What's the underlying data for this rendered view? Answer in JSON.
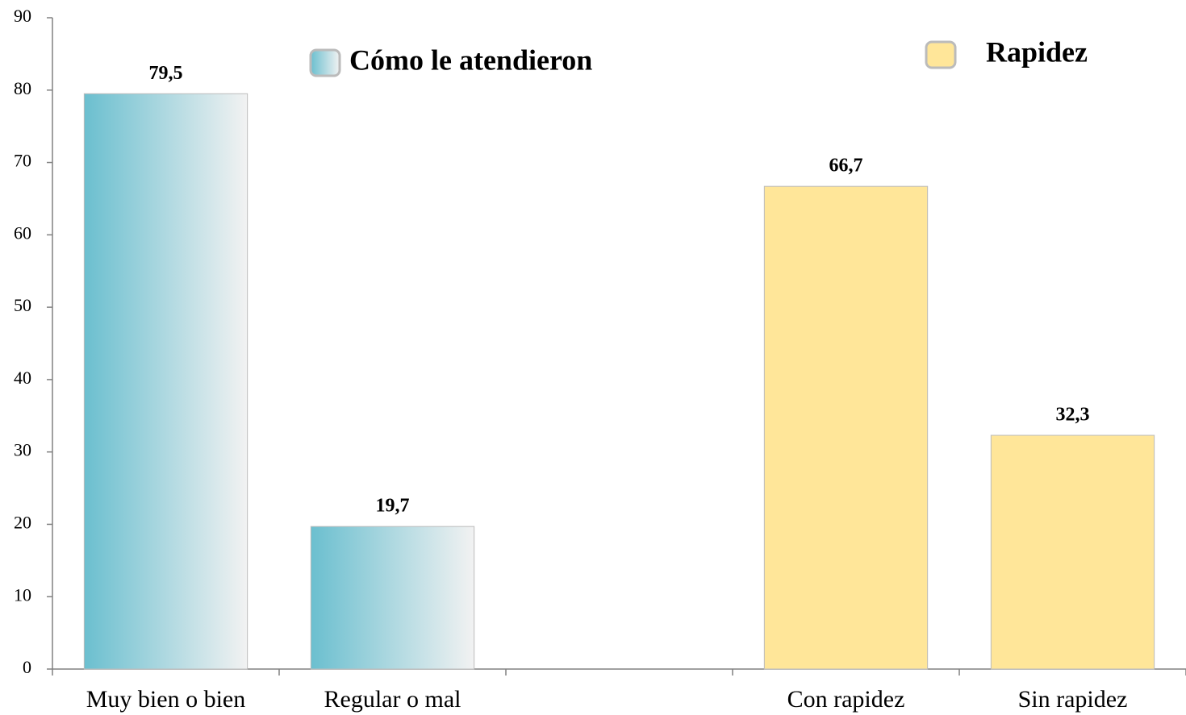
{
  "chart_data": {
    "type": "bar",
    "categories": [
      "Muy bien o bien",
      "Regular o mal",
      null,
      "Con rapidez",
      "Sin rapidez"
    ],
    "series": [
      {
        "name": "Cómo le atendieron",
        "color": "#6bbfcf",
        "values": [
          79.5,
          19.7,
          null,
          null,
          null
        ],
        "value_labels": [
          "79,5",
          "19,7",
          null,
          null,
          null
        ]
      },
      {
        "name": "Rapidez",
        "color": "#ffe699",
        "values": [
          null,
          null,
          null,
          66.7,
          32.3
        ],
        "value_labels": [
          null,
          null,
          null,
          "66,7",
          "32,3"
        ]
      }
    ],
    "ylim": [
      0,
      90
    ],
    "yticks": [
      0,
      10,
      20,
      30,
      40,
      50,
      60,
      70,
      80,
      90
    ],
    "grid": false
  }
}
